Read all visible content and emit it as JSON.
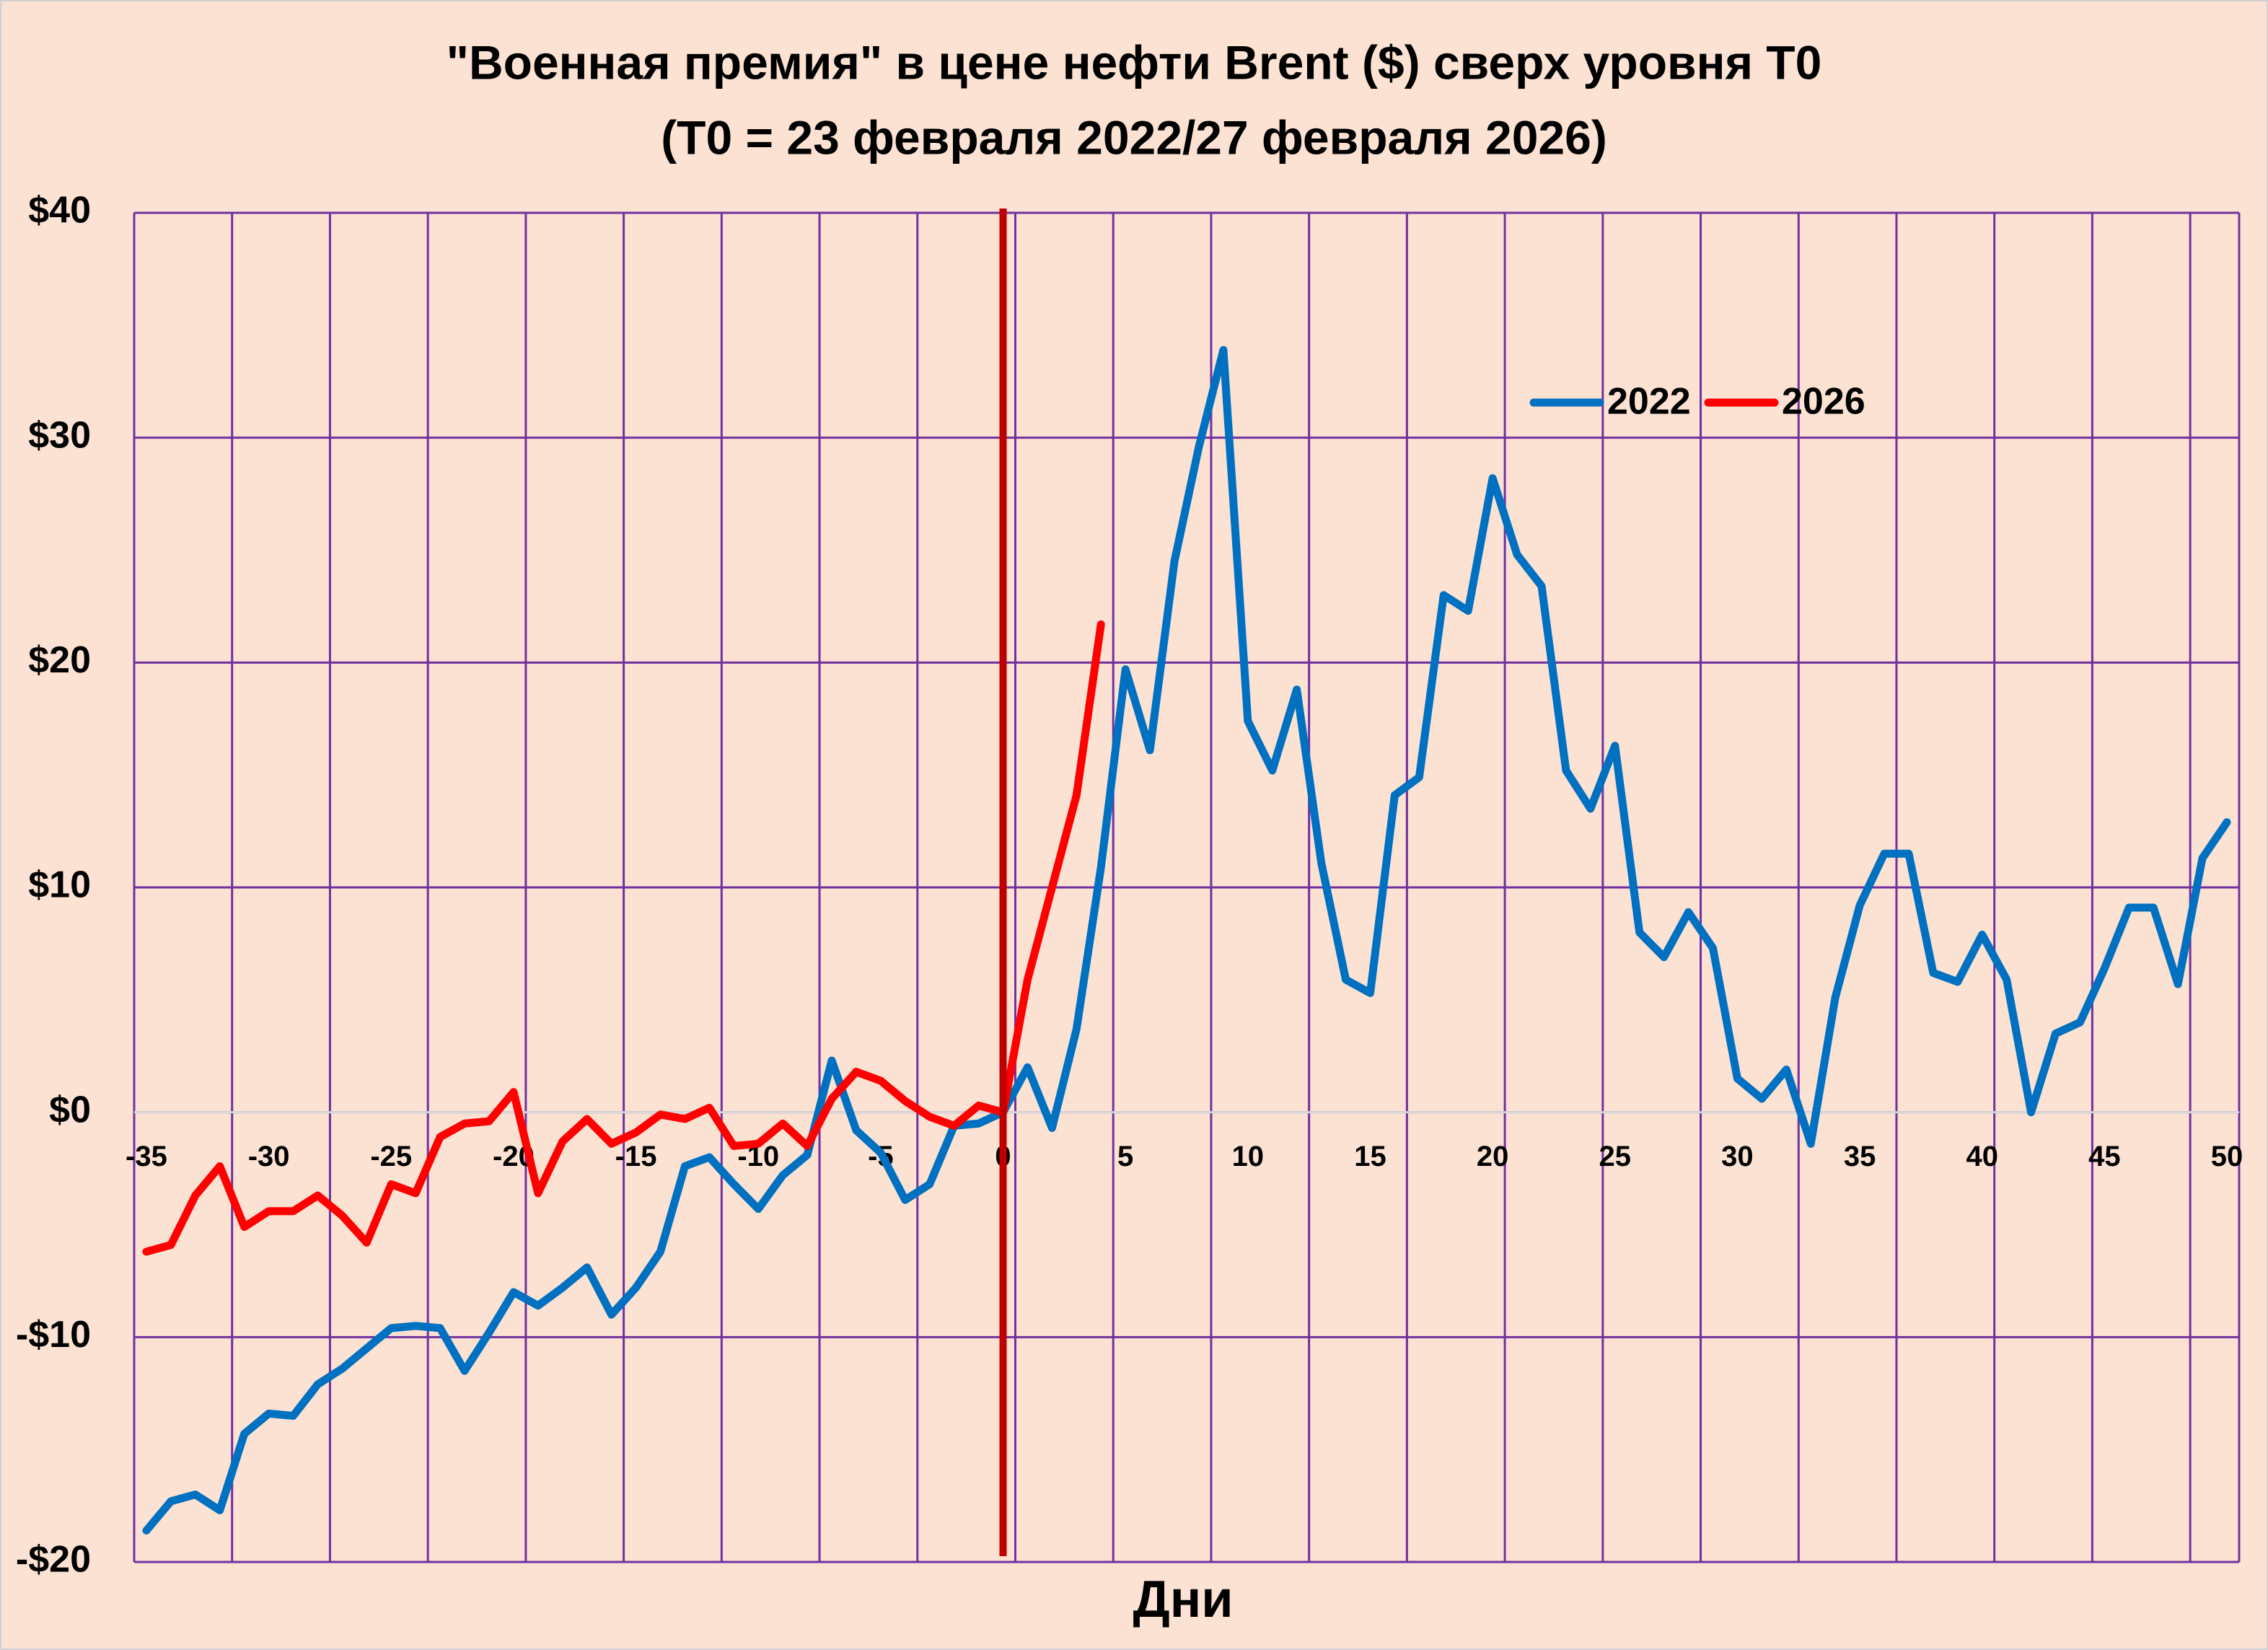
{
  "chart_data": {
    "type": "line",
    "title": "\"Военная премия\" в цене нефти Brent ($) сверх уровня T0",
    "subtitle": "(T0 = 23 февраля 2022/27 февраля 2026)",
    "x_label": "Дни",
    "x": [
      -35,
      -34,
      -33,
      -32,
      -31,
      -30,
      -29,
      -28,
      -27,
      -26,
      -25,
      -24,
      -23,
      -22,
      -21,
      -20,
      -19,
      -18,
      -17,
      -16,
      -15,
      -14,
      -13,
      -12,
      -11,
      -10,
      -9,
      -8,
      -7,
      -6,
      -5,
      -4,
      -3,
      -2,
      -1,
      0,
      1,
      2,
      3,
      4,
      5,
      6,
      7,
      8,
      9,
      10,
      11,
      12,
      13,
      14,
      15,
      16,
      17,
      18,
      19,
      20,
      21,
      22,
      23,
      24,
      25,
      26,
      27,
      28,
      29,
      30,
      31,
      32,
      33,
      34,
      35,
      36,
      37,
      38,
      39,
      40,
      41,
      42,
      43,
      44,
      45,
      46,
      47,
      48,
      49,
      50
    ],
    "series": [
      {
        "name": "2022",
        "color": "#0070c0",
        "values": [
          -18.6,
          -17.3,
          -17.0,
          -17.7,
          -14.3,
          -13.4,
          -13.5,
          -12.1,
          -11.4,
          -10.5,
          -9.6,
          -9.5,
          -9.6,
          -11.5,
          -9.8,
          -8.0,
          -8.6,
          -7.8,
          -6.9,
          -9.0,
          -7.8,
          -6.2,
          -2.4,
          -2.0,
          -3.2,
          -4.3,
          -2.8,
          -1.9,
          2.3,
          -0.8,
          -1.8,
          -3.9,
          -3.2,
          -0.6,
          -0.5,
          0,
          2.0,
          -0.7,
          3.7,
          10.9,
          19.7,
          16.1,
          24.5,
          29.6,
          33.9,
          17.4,
          15.2,
          18.8,
          11.1,
          5.9,
          5.3,
          14.1,
          14.9,
          23.0,
          22.3,
          28.2,
          24.8,
          23.4,
          15.2,
          13.5,
          16.3,
          8.0,
          6.9,
          8.9,
          7.3,
          1.5,
          0.6,
          1.9,
          -1.4,
          5.1,
          9.2,
          11.5,
          11.5,
          6.2,
          5.8,
          7.9,
          5.9,
          0.0,
          3.5,
          4.0,
          6.4,
          9.1,
          9.1,
          5.7,
          11.3,
          12.9
        ]
      },
      {
        "name": "2026",
        "color": "#ff0000",
        "values": [
          -6.2,
          -5.9,
          -3.7,
          -2.4,
          -5.1,
          -4.4,
          -4.4,
          -3.7,
          -4.6,
          -5.8,
          -3.2,
          -3.6,
          -1.1,
          -0.5,
          -0.4,
          0.9,
          -3.6,
          -1.3,
          -0.3,
          -1.4,
          -0.9,
          -0.1,
          -0.3,
          0.2,
          -1.5,
          -1.4,
          -0.5,
          -1.5,
          0.6,
          1.8,
          1.4,
          0.5,
          -0.2,
          -0.6,
          0.3,
          0,
          5.9,
          10.0,
          14.1,
          21.7,
          null,
          null,
          null,
          null,
          null,
          null,
          null,
          null,
          null,
          null,
          null,
          null,
          null,
          null,
          null,
          null,
          null,
          null,
          null,
          null,
          null,
          null,
          null,
          null,
          null,
          null,
          null,
          null,
          null,
          null,
          null,
          null,
          null,
          null,
          null,
          null,
          null,
          null,
          null,
          null,
          null,
          null,
          null,
          null,
          null,
          null
        ]
      }
    ],
    "xlim": [
      -35.5,
      50.5
    ],
    "xticks": [
      -35,
      -30,
      -25,
      -20,
      -15,
      -10,
      -5,
      0,
      5,
      10,
      15,
      20,
      25,
      30,
      35,
      40,
      45,
      50
    ],
    "x_gridlines": [
      -35.5,
      -31.5,
      -27.5,
      -23.5,
      -19.5,
      -15.5,
      -11.5,
      -7.5,
      -3.5,
      0.5,
      4.5,
      8.5,
      12.5,
      16.5,
      20.5,
      24.5,
      28.5,
      32.5,
      36.5,
      40.5,
      44.5,
      48.5,
      50.5
    ],
    "ylim": [
      -20,
      40
    ],
    "yticks": [
      {
        "value": -20,
        "label": "-$20"
      },
      {
        "value": -10,
        "label": "-$10"
      },
      {
        "value": 0,
        "label": "$0"
      },
      {
        "value": 10,
        "label": "$10"
      },
      {
        "value": 20,
        "label": "$20"
      },
      {
        "value": 30,
        "label": "$30"
      },
      {
        "value": 40,
        "label": "$40"
      }
    ],
    "grid": true,
    "grid_color": "#7030a0",
    "vline": {
      "x": 0,
      "color": "#c00000"
    },
    "legend": "top-right"
  }
}
